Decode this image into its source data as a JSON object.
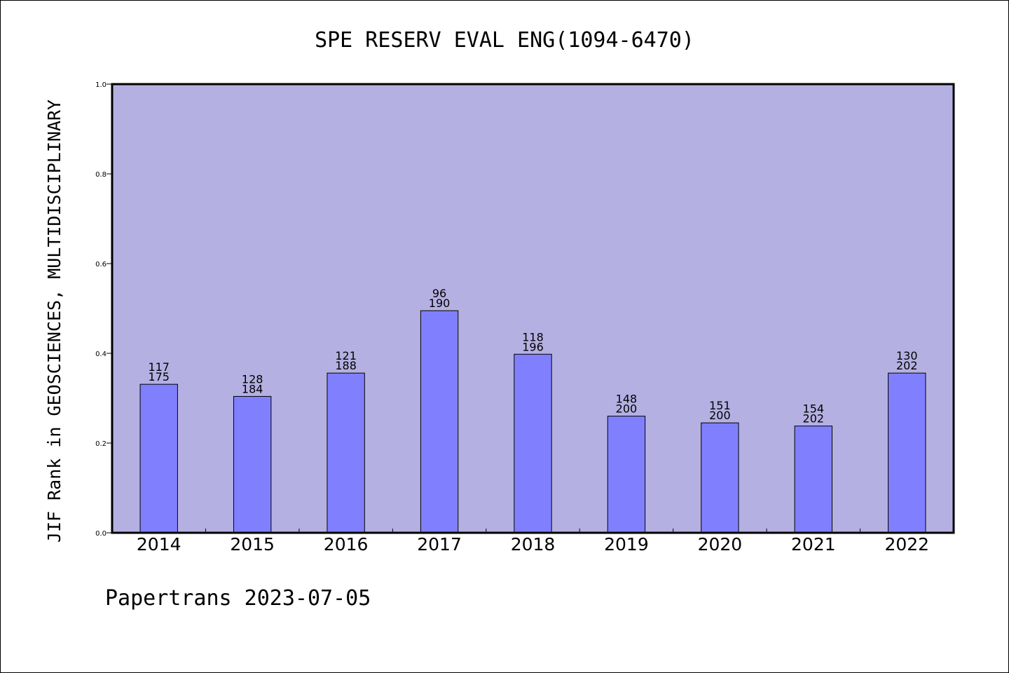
{
  "chart_data": {
    "type": "bar",
    "title": "SPE RESERV EVAL ENG(1094-6470)",
    "ylabel": "JIF Rank in GEOSCIENCES, MULTIDISCIPLINARY",
    "xlabel": "",
    "ylim": [
      0,
      1.0
    ],
    "yticks": [
      0.0,
      0.2,
      0.4,
      0.6,
      0.8,
      1.0
    ],
    "ytick_labels": [
      "0.0",
      "0.2",
      "0.4",
      "0.6",
      "0.8",
      "1.0"
    ],
    "categories": [
      "2014",
      "2015",
      "2016",
      "2017",
      "2018",
      "2019",
      "2020",
      "2021",
      "2022"
    ],
    "values": [
      0.331,
      0.304,
      0.356,
      0.495,
      0.398,
      0.26,
      0.245,
      0.238,
      0.356
    ],
    "ranks": [
      "117",
      "128",
      "121",
      "96",
      "118",
      "148",
      "151",
      "154",
      "130"
    ],
    "totals": [
      "175",
      "184",
      "188",
      "190",
      "196",
      "200",
      "200",
      "202",
      "202"
    ],
    "grid": false,
    "legend": "none",
    "colors": {
      "plot_bg": "#b5b0e2",
      "bar": "#8080ff",
      "bar_edge": "#000000"
    }
  },
  "footer": "Papertrans 2023-07-05"
}
